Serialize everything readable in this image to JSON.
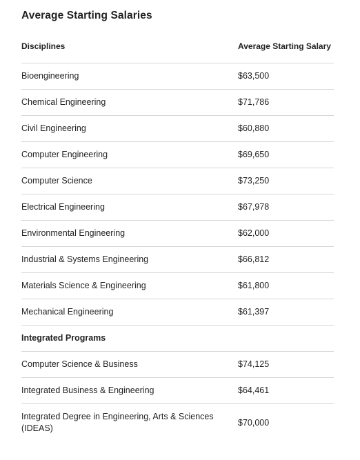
{
  "title": "Average Starting Salaries",
  "header": {
    "col1": "Disciplines",
    "col2": "Average Starting Salary"
  },
  "disciplines": [
    {
      "name": "Bioengineering",
      "salary": "$63,500"
    },
    {
      "name": "Chemical Engineering",
      "salary": "$71,786"
    },
    {
      "name": "Civil Engineering",
      "salary": "$60,880"
    },
    {
      "name": "Computer Engineering",
      "salary": "$69,650"
    },
    {
      "name": "Computer Science",
      "salary": "$73,250"
    },
    {
      "name": "Electrical Engineering",
      "salary": "$67,978"
    },
    {
      "name": "Environmental Engineering",
      "salary": "$62,000"
    },
    {
      "name": "Industrial & Systems Engineering",
      "salary": "$66,812"
    },
    {
      "name": "Materials Science & Engineering",
      "salary": "$61,800"
    },
    {
      "name": "Mechanical Engineering",
      "salary": "$61,397"
    }
  ],
  "integrated_heading": "Integrated Programs",
  "integrated": [
    {
      "name": "Computer Science & Business",
      "salary": "$74,125"
    },
    {
      "name": "Integrated Business & Engineering",
      "salary": "$64,461"
    },
    {
      "name": "Integrated Degree in Engineering, Arts & Sciences (IDEAS)",
      "salary": "$70,000"
    }
  ]
}
